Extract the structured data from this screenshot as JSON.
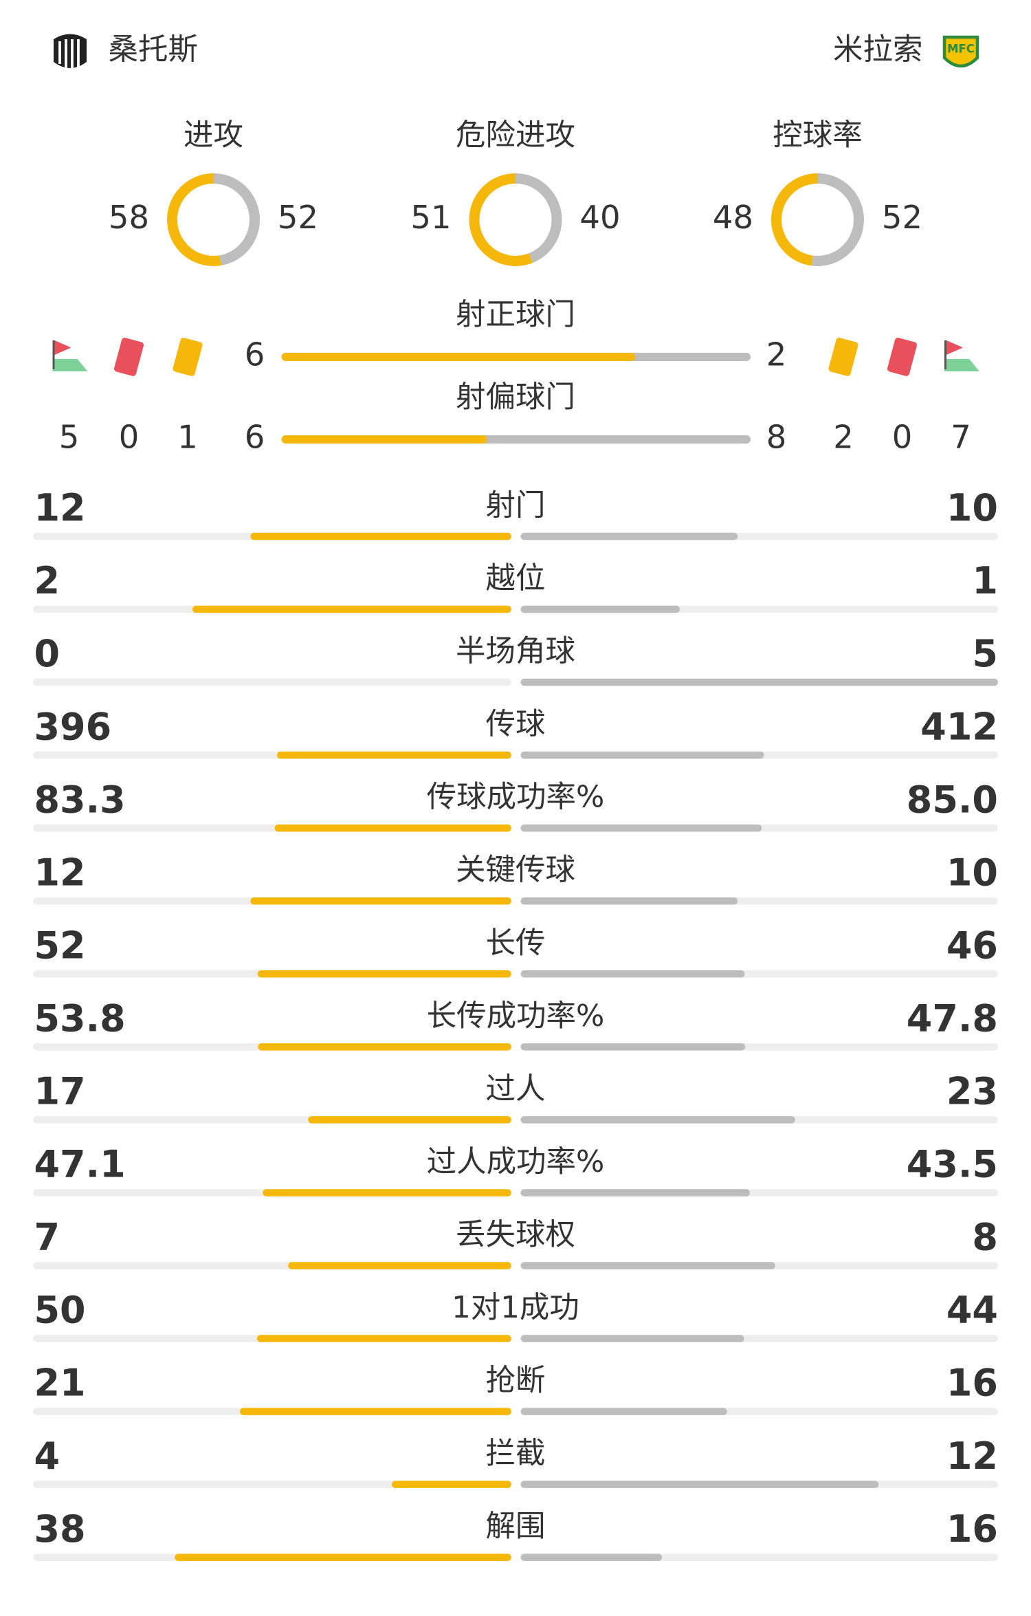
{
  "header": {
    "home_team": "桑托斯",
    "away_team": "米拉索"
  },
  "donuts": [
    {
      "label": "进攻",
      "home": 58,
      "away": 52
    },
    {
      "label": "危险进攻",
      "home": 51,
      "away": 40
    },
    {
      "label": "控球率",
      "home": 48,
      "away": 52
    }
  ],
  "shot_bars": [
    {
      "label": "射正球门",
      "home": 6,
      "away": 2
    },
    {
      "label": "射偏球门",
      "home": 6,
      "away": 8
    }
  ],
  "discipline": {
    "home": {
      "corners": 5,
      "red_cards": 0,
      "yellow_cards": 1
    },
    "away": {
      "yellow_cards": 2,
      "red_cards": 0,
      "corners": 7
    }
  },
  "stats": [
    {
      "label": "射门",
      "home": 12,
      "away": 10
    },
    {
      "label": "越位",
      "home": 2,
      "away": 1
    },
    {
      "label": "半场角球",
      "home": 0,
      "away": 5
    },
    {
      "label": "传球",
      "home": 396,
      "away": 412
    },
    {
      "label": "传球成功率%",
      "home": 83.3,
      "away": 85.0,
      "away_label": "85.0"
    },
    {
      "label": "关键传球",
      "home": 12,
      "away": 10
    },
    {
      "label": "长传",
      "home": 52,
      "away": 46
    },
    {
      "label": "长传成功率%",
      "home": 53.8,
      "away": 47.8
    },
    {
      "label": "过人",
      "home": 17,
      "away": 23
    },
    {
      "label": "过人成功率%",
      "home": 47.1,
      "away": 43.5
    },
    {
      "label": "丢失球权",
      "home": 7,
      "away": 8
    },
    {
      "label": "1对1成功",
      "home": 50,
      "away": 44
    },
    {
      "label": "抢断",
      "home": 21,
      "away": 16
    },
    {
      "label": "拦截",
      "home": 4,
      "away": 12
    },
    {
      "label": "解围",
      "home": 38,
      "away": 16
    }
  ]
}
